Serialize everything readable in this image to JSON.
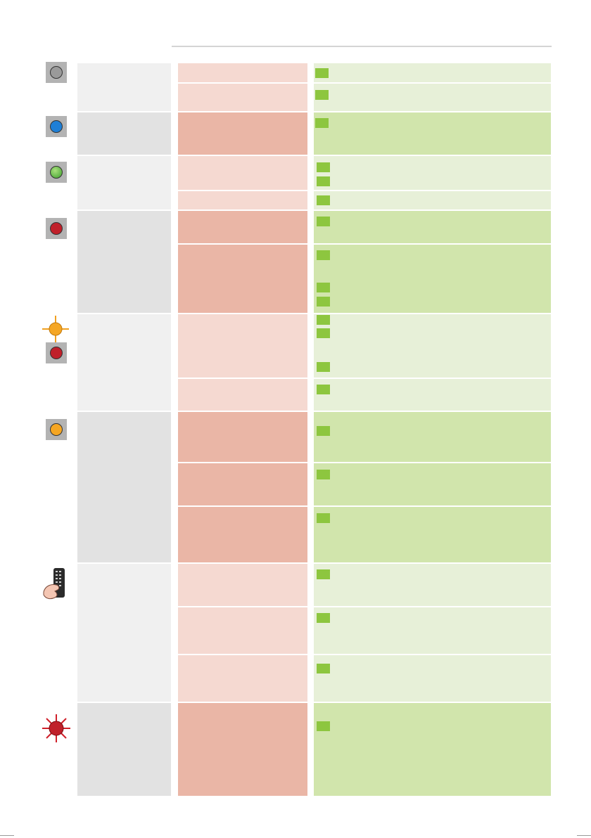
{
  "colors": {
    "col1_light": "#f0f0f0",
    "col1_dark": "#e2e2e2",
    "col2_light": "#f5d9d1",
    "col2_dark": "#eab6a6",
    "col3_light": "#e7f0d8",
    "col3_dark": "#d1e5ac",
    "checkbox": "#8dc63f"
  },
  "icons": [
    "led-grey-icon",
    "led-blue-icon",
    "led-green-icon",
    "led-red-icon",
    "led-orange-blinking-icon",
    "led-red-icon",
    "led-orange-icon",
    "remote-control-icon",
    "led-red-blinking-icon"
  ],
  "rows": [
    {
      "status": "",
      "cause": "",
      "remedy": ""
    },
    {
      "status": "",
      "cause": "",
      "remedy": ""
    }
  ]
}
